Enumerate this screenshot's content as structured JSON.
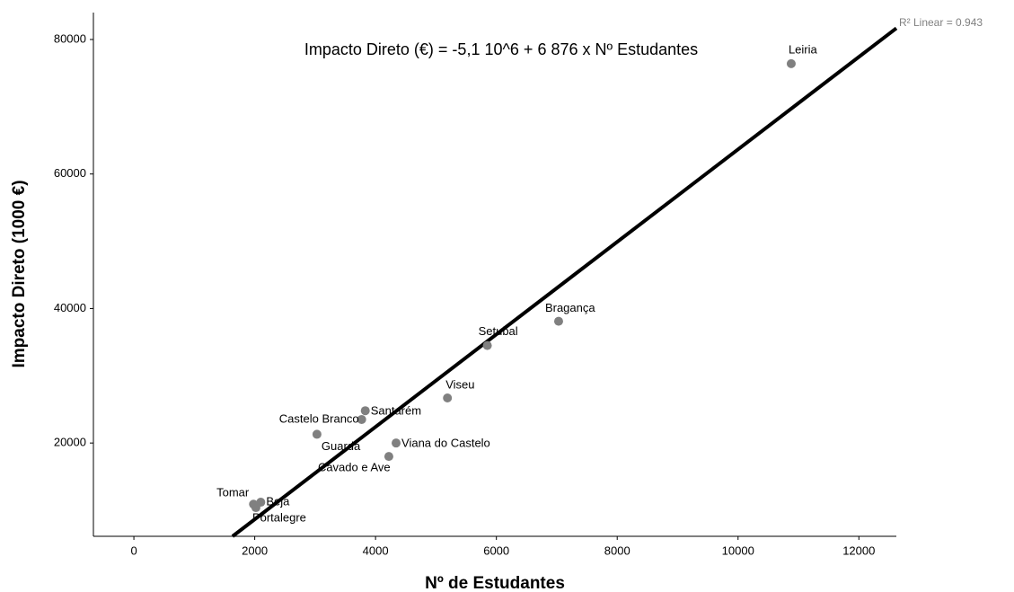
{
  "chart_data": {
    "type": "scatter",
    "equation": "Impacto Direto (€) = -5,1 10^6 + 6 876 x Nº Estudantes",
    "fit_label": "R² Linear = 0.943",
    "x_label": "Nº de Estudantes",
    "y_label": "Impacto Direto (1000 €)",
    "color": "#808080",
    "fit": {
      "intercept": -5100,
      "slope": 6.876
    },
    "labels": [
      "Leiria",
      "Bragança",
      "Setubal",
      "Viseu",
      "Santarém",
      "Castelo Branco",
      "Guarda",
      "Viana do Castelo",
      "Cávado e Ave",
      "Tomar",
      "Beja",
      "Portalegre"
    ],
    "x": [
      10880,
      7030,
      5850,
      5190,
      3830,
      3770,
      3030,
      4340,
      4220,
      1980,
      2100,
      2020
    ],
    "y": [
      76400,
      38100,
      34500,
      26700,
      24800,
      23500,
      21300,
      20000,
      18000,
      10900,
      11200,
      10400
    ],
    "xlim": [
      -670,
      12620
    ],
    "ylim": [
      6130,
      84000
    ],
    "xticks": [
      0,
      2000,
      4000,
      6000,
      8000,
      10000,
      12000
    ],
    "yticks": [
      20000,
      40000,
      60000,
      80000
    ]
  }
}
